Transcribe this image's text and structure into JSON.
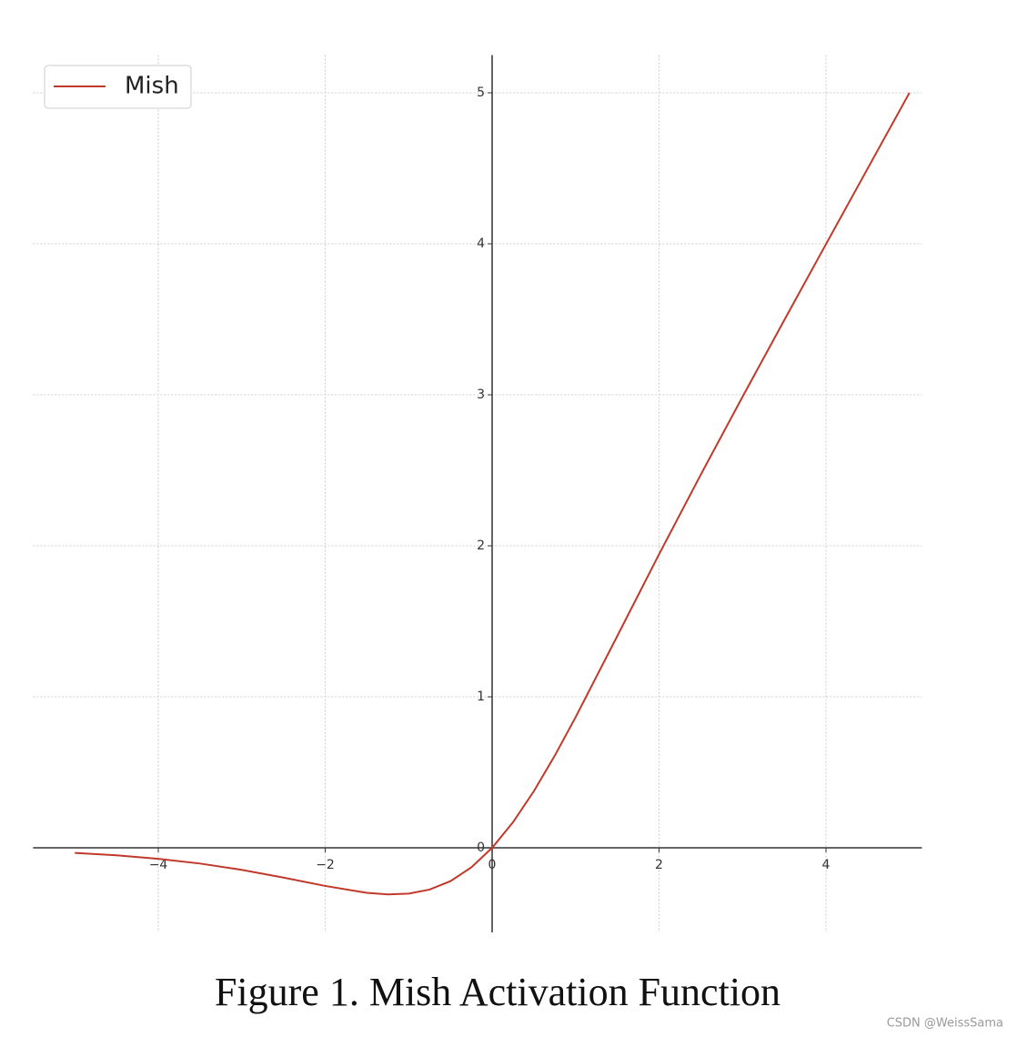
{
  "chart_data": {
    "type": "line",
    "caption": "Figure 1.  Mish Activation Function",
    "watermark": "CSDN @WeissSama",
    "x": [
      -5,
      -4.5,
      -4,
      -3.5,
      -3,
      -2.5,
      -2,
      -1.5,
      -1.25,
      -1,
      -0.75,
      -0.5,
      -0.25,
      0,
      0.25,
      0.5,
      0.75,
      1,
      1.5,
      2,
      2.5,
      3,
      3.5,
      4,
      4.5,
      5
    ],
    "series": [
      {
        "name": "Mish",
        "color": "#c0392b",
        "values": [
          -0.0336,
          -0.0497,
          -0.0726,
          -0.1041,
          -0.1456,
          -0.1968,
          -0.2525,
          -0.2981,
          -0.3084,
          -0.3034,
          -0.2765,
          -0.2207,
          -0.13,
          0,
          0.1695,
          0.3752,
          0.6098,
          0.8651,
          1.4031,
          1.944,
          2.4713,
          2.9865,
          3.494,
          3.9974,
          4.4989,
          4.9996
        ]
      }
    ],
    "xlim": [
      -5.5,
      5.15
    ],
    "ylim": [
      -0.56,
      5.25
    ],
    "xticks": [
      {
        "value": -4,
        "label": "−4"
      },
      {
        "value": -2,
        "label": "−2"
      },
      0,
      2,
      4
    ],
    "yticks": [
      0,
      1,
      2,
      3,
      4,
      5
    ],
    "grid": true,
    "legend": "upper-left"
  }
}
